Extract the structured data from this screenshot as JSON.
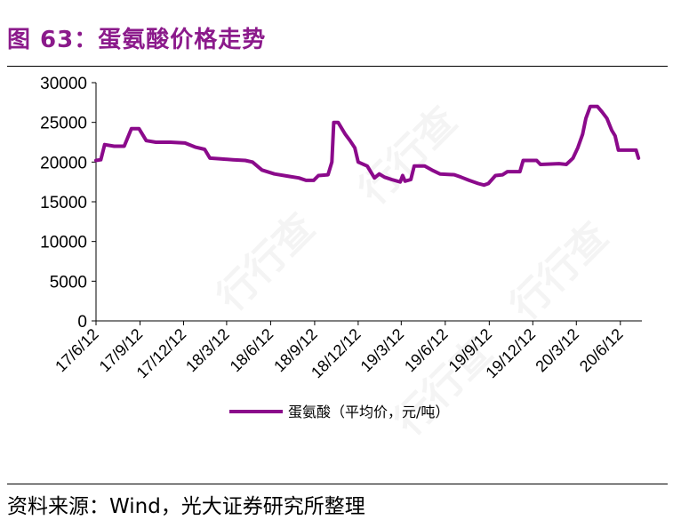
{
  "figure": {
    "title": "图 63：蛋氨酸价格走势",
    "source": "资料来源：Wind，光大证券研究所整理"
  },
  "colors": {
    "title": "#8B1A8B",
    "series": "#8B0A8B"
  },
  "chart_data": {
    "type": "line",
    "title": "",
    "xlabel": "",
    "ylabel": "",
    "ylim": [
      0,
      30000
    ],
    "yticks": [
      0,
      5000,
      10000,
      15000,
      20000,
      25000,
      30000
    ],
    "xlim": [
      "2017-06-12",
      "2020-07-27"
    ],
    "xticks": [
      "17/6/12",
      "17/9/12",
      "17/12/12",
      "18/3/12",
      "18/6/12",
      "18/9/12",
      "18/12/12",
      "19/3/12",
      "19/6/12",
      "19/9/12",
      "19/12/12",
      "20/3/12",
      "20/6/12"
    ],
    "xtick_dates": [
      "2017-06-12",
      "2017-09-12",
      "2017-12-12",
      "2018-03-12",
      "2018-06-12",
      "2018-09-12",
      "2018-12-12",
      "2019-03-12",
      "2019-06-12",
      "2019-09-12",
      "2019-12-12",
      "2020-03-12",
      "2020-06-12"
    ],
    "grid": false,
    "legend": "bottom",
    "series": [
      {
        "name": "蛋氨酸（平均价，元/吨）",
        "points": [
          [
            "2017-06-12",
            20200
          ],
          [
            "2017-06-22",
            20300
          ],
          [
            "2017-06-30",
            22200
          ],
          [
            "2017-07-20",
            22000
          ],
          [
            "2017-08-10",
            22000
          ],
          [
            "2017-08-25",
            24200
          ],
          [
            "2017-09-10",
            24200
          ],
          [
            "2017-09-25",
            22700
          ],
          [
            "2017-10-15",
            22500
          ],
          [
            "2017-11-15",
            22500
          ],
          [
            "2017-12-15",
            22400
          ],
          [
            "2018-01-05",
            21900
          ],
          [
            "2018-01-25",
            21600
          ],
          [
            "2018-02-05",
            20500
          ],
          [
            "2018-02-28",
            20400
          ],
          [
            "2018-03-25",
            20300
          ],
          [
            "2018-04-20",
            20200
          ],
          [
            "2018-05-05",
            20000
          ],
          [
            "2018-05-25",
            19000
          ],
          [
            "2018-06-20",
            18500
          ],
          [
            "2018-07-20",
            18200
          ],
          [
            "2018-08-10",
            18000
          ],
          [
            "2018-08-25",
            17700
          ],
          [
            "2018-09-10",
            17700
          ],
          [
            "2018-09-20",
            18300
          ],
          [
            "2018-10-10",
            18400
          ],
          [
            "2018-10-18",
            20000
          ],
          [
            "2018-10-22",
            25000
          ],
          [
            "2018-10-31",
            25000
          ],
          [
            "2018-11-15",
            23500
          ],
          [
            "2018-11-25",
            22700
          ],
          [
            "2018-12-05",
            21800
          ],
          [
            "2018-12-12",
            20000
          ],
          [
            "2018-12-31",
            19500
          ],
          [
            "2019-01-15",
            18000
          ],
          [
            "2019-01-25",
            18500
          ],
          [
            "2019-02-05",
            18100
          ],
          [
            "2019-02-20",
            17800
          ],
          [
            "2019-03-10",
            17500
          ],
          [
            "2019-03-15",
            18300
          ],
          [
            "2019-03-20",
            17600
          ],
          [
            "2019-04-01",
            17800
          ],
          [
            "2019-04-08",
            19500
          ],
          [
            "2019-04-30",
            19500
          ],
          [
            "2019-05-15",
            19000
          ],
          [
            "2019-06-01",
            18500
          ],
          [
            "2019-07-01",
            18400
          ],
          [
            "2019-07-15",
            18100
          ],
          [
            "2019-08-01",
            17700
          ],
          [
            "2019-08-20",
            17300
          ],
          [
            "2019-09-01",
            17100
          ],
          [
            "2019-09-10",
            17300
          ],
          [
            "2019-09-25",
            18300
          ],
          [
            "2019-10-10",
            18400
          ],
          [
            "2019-10-20",
            18800
          ],
          [
            "2019-11-15",
            18800
          ],
          [
            "2019-11-22",
            20200
          ],
          [
            "2019-12-20",
            20200
          ],
          [
            "2019-12-28",
            19700
          ],
          [
            "2020-02-05",
            19800
          ],
          [
            "2020-02-20",
            19700
          ],
          [
            "2020-03-05",
            20500
          ],
          [
            "2020-03-15",
            21800
          ],
          [
            "2020-03-25",
            23500
          ],
          [
            "2020-04-01",
            25500
          ],
          [
            "2020-04-10",
            27000
          ],
          [
            "2020-04-25",
            27000
          ],
          [
            "2020-05-05",
            26300
          ],
          [
            "2020-05-15",
            25500
          ],
          [
            "2020-05-25",
            24000
          ],
          [
            "2020-06-01",
            23300
          ],
          [
            "2020-06-08",
            21500
          ],
          [
            "2020-07-15",
            21500
          ],
          [
            "2020-07-20",
            20500
          ]
        ]
      }
    ]
  }
}
